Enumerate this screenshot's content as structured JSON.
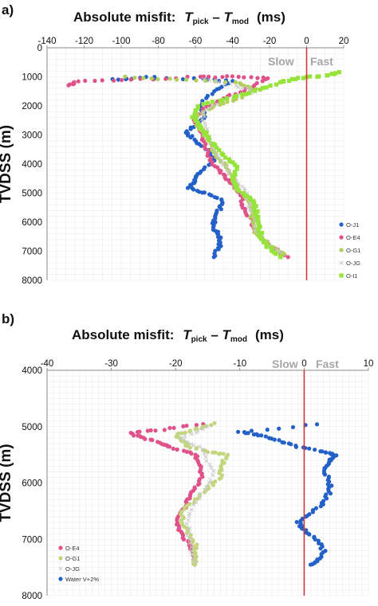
{
  "panel_a": {
    "letter": "a)",
    "title": {
      "prefix": "Absolute misfit:",
      "t1": "T",
      "sub1": "pick",
      "dash": " – ",
      "t2": "T",
      "sub2": "mod",
      "unit": "(ms)"
    },
    "zone_slow": "Slow",
    "zone_fast": "Fast"
  },
  "panel_b": {
    "letter": "b)",
    "title": {
      "prefix": "Absolute misfit:",
      "t1": "T",
      "sub1": "pick",
      "dash": " – ",
      "t2": "T",
      "sub2": "mod",
      "unit": "(ms)"
    },
    "zone_slow": "Slow",
    "zone_fast": "Fast"
  },
  "chart_data": [
    {
      "type": "scatter",
      "ylabel": "TVDSS (m)",
      "xlim": [
        -140,
        20
      ],
      "ylim": [
        0,
        8000
      ],
      "y_inverted": true,
      "x_axis_position": "top",
      "xticks": [
        "-140",
        "-120",
        "-100",
        "-80",
        "-60",
        "-40",
        "-20",
        "0",
        "20"
      ],
      "yticks": [
        "0",
        "1000",
        "2000",
        "3000",
        "4000",
        "5000",
        "6000",
        "7000",
        "8000"
      ],
      "grid": true,
      "reference_line": {
        "x": 0,
        "color": "#d6333a"
      },
      "legend_position": "bottom-right",
      "series": [
        {
          "name": "O-J1",
          "color": "#2360c8",
          "marker": "circle",
          "points": [
            [
              -82,
              1000
            ],
            [
              -105,
              1100
            ],
            [
              -60,
              1050
            ],
            [
              -40,
              1150
            ],
            [
              -50,
              1500
            ],
            [
              -58,
              2000
            ],
            [
              -55,
              2300
            ],
            [
              -58,
              2600
            ],
            [
              -65,
              2900
            ],
            [
              -60,
              3200
            ],
            [
              -52,
              3600
            ],
            [
              -50,
              3900
            ],
            [
              -58,
              4300
            ],
            [
              -60,
              4600
            ],
            [
              -64,
              4800
            ],
            [
              -55,
              5000
            ],
            [
              -45,
              5250
            ],
            [
              -47,
              5550
            ],
            [
              -50,
              5900
            ],
            [
              -50,
              6200
            ],
            [
              -47,
              6500
            ],
            [
              -47,
              6800
            ],
            [
              -50,
              7200
            ]
          ]
        },
        {
          "name": "O-E4",
          "color": "#e0528a",
          "marker": "circle",
          "points": [
            [
              -128,
              1300
            ],
            [
              -124,
              1150
            ],
            [
              -95,
              1100
            ],
            [
              -58,
              1000
            ],
            [
              -40,
              1000
            ],
            [
              -20,
              1050
            ],
            [
              -32,
              1400
            ],
            [
              -45,
              1750
            ],
            [
              -55,
              2100
            ],
            [
              -60,
              2500
            ],
            [
              -57,
              2900
            ],
            [
              -55,
              3300
            ],
            [
              -52,
              3800
            ],
            [
              -48,
              4200
            ],
            [
              -43,
              4500
            ],
            [
              -38,
              4800
            ],
            [
              -35,
              5100
            ],
            [
              -34,
              5500
            ],
            [
              -30,
              5900
            ],
            [
              -28,
              6300
            ],
            [
              -22,
              6700
            ],
            [
              -10,
              7200
            ]
          ]
        },
        {
          "name": "O-G1",
          "color": "#b2cf5a",
          "marker": "circle",
          "points": [
            [
              -98,
              1000
            ],
            [
              -70,
              1100
            ],
            [
              -38,
              1200
            ],
            [
              -28,
              1400
            ],
            [
              -35,
              1700
            ],
            [
              -50,
              2000
            ],
            [
              -60,
              2400
            ],
            [
              -58,
              2800
            ],
            [
              -52,
              3200
            ],
            [
              -50,
              3600
            ],
            [
              -45,
              4000
            ],
            [
              -40,
              4400
            ],
            [
              -38,
              4800
            ],
            [
              -32,
              5200
            ],
            [
              -30,
              5600
            ],
            [
              -29,
              6000
            ],
            [
              -27,
              6400
            ],
            [
              -20,
              6800
            ],
            [
              -12,
              7100
            ]
          ]
        },
        {
          "name": "O-JG",
          "color": "#c8c8c8",
          "marker": "x",
          "points": [
            [
              -55,
              1100
            ],
            [
              -38,
              1300
            ],
            [
              -28,
              1500
            ],
            [
              -45,
              1800
            ],
            [
              -56,
              2200
            ],
            [
              -55,
              2700
            ],
            [
              -52,
              3200
            ],
            [
              -48,
              3700
            ],
            [
              -43,
              4200
            ],
            [
              -37,
              4600
            ],
            [
              -33,
              5000
            ],
            [
              -31,
              5400
            ],
            [
              -28,
              5800
            ],
            [
              -27,
              6300
            ],
            [
              -22,
              6700
            ],
            [
              -14,
              7100
            ]
          ]
        },
        {
          "name": "O-I1",
          "color": "#96e33a",
          "marker": "square",
          "points": [
            [
              18,
              850
            ],
            [
              10,
              950
            ],
            [
              -5,
              1050
            ],
            [
              -15,
              1200
            ],
            [
              -28,
              1500
            ],
            [
              -42,
              1750
            ],
            [
              -58,
              2000
            ],
            [
              -62,
              2400
            ],
            [
              -56,
              2800
            ],
            [
              -52,
              3200
            ],
            [
              -45,
              3700
            ],
            [
              -38,
              4100
            ],
            [
              -40,
              4600
            ],
            [
              -35,
              5000
            ],
            [
              -28,
              5300
            ],
            [
              -27,
              5700
            ],
            [
              -25,
              6100
            ],
            [
              -25,
              6500
            ],
            [
              -20,
              6900
            ],
            [
              -14,
              7200
            ]
          ]
        }
      ]
    },
    {
      "type": "scatter",
      "ylabel": "TVDSS (m)",
      "xlim": [
        -40,
        10
      ],
      "ylim": [
        4000,
        8000
      ],
      "y_inverted": true,
      "x_axis_position": "top",
      "xticks": [
        "-40",
        "-30",
        "-20",
        "-10",
        "0",
        "10"
      ],
      "yticks": [
        "4000",
        "5000",
        "6000",
        "7000",
        "8000"
      ],
      "grid": true,
      "reference_line": {
        "x": 0,
        "color": "#d6333a"
      },
      "legend_position": "bottom-left",
      "series": [
        {
          "name": "O-E4",
          "color": "#e0528a",
          "marker": "circle",
          "points": [
            [
              -16,
              4950
            ],
            [
              -22,
              5050
            ],
            [
              -27,
              5120
            ],
            [
              -25,
              5200
            ],
            [
              -22,
              5300
            ],
            [
              -20,
              5400
            ],
            [
              -17,
              5500
            ],
            [
              -16,
              5700
            ],
            [
              -16,
              5900
            ],
            [
              -17,
              6100
            ],
            [
              -18,
              6300
            ],
            [
              -19,
              6500
            ],
            [
              -20,
              6700
            ],
            [
              -19,
              6900
            ],
            [
              -18,
              7100
            ],
            [
              -17,
              7300
            ],
            [
              -17,
              7450
            ]
          ]
        },
        {
          "name": "O-G1",
          "color": "#c3d67f",
          "marker": "circle",
          "points": [
            [
              -14,
              4950
            ],
            [
              -17,
              5050
            ],
            [
              -20,
              5150
            ],
            [
              -19,
              5250
            ],
            [
              -18,
              5350
            ],
            [
              -15,
              5450
            ],
            [
              -12,
              5500
            ],
            [
              -13,
              5700
            ],
            [
              -13,
              5900
            ],
            [
              -15,
              6100
            ],
            [
              -17,
              6300
            ],
            [
              -19,
              6500
            ],
            [
              -19,
              6700
            ],
            [
              -18,
              6900
            ],
            [
              -17,
              7100
            ],
            [
              -17,
              7300
            ],
            [
              -17,
              7450
            ]
          ]
        },
        {
          "name": "O-JG",
          "color": "#c8c8c8",
          "marker": "x",
          "points": [
            [
              -15,
              5000
            ],
            [
              -19,
              5200
            ],
            [
              -16,
              5400
            ],
            [
              -14,
              5800
            ],
            [
              -16,
              6200
            ],
            [
              -18,
              6600
            ],
            [
              -18,
              7000
            ],
            [
              -17,
              7400
            ]
          ]
        },
        {
          "name": "Water V+2%",
          "color": "#2360c8",
          "marker": "circle",
          "points": [
            [
              2,
              4950
            ],
            [
              -10,
              5100
            ],
            [
              -7,
              5150
            ],
            [
              -4,
              5250
            ],
            [
              -1,
              5350
            ],
            [
              3,
              5450
            ],
            [
              5,
              5500
            ],
            [
              4,
              5600
            ],
            [
              3,
              5750
            ],
            [
              4,
              5950
            ],
            [
              4,
              6150
            ],
            [
              3,
              6350
            ],
            [
              1,
              6550
            ],
            [
              -1,
              6700
            ],
            [
              0,
              6850
            ],
            [
              2,
              7000
            ],
            [
              3,
              7200
            ],
            [
              2,
              7400
            ],
            [
              1,
              7450
            ]
          ]
        }
      ]
    }
  ]
}
